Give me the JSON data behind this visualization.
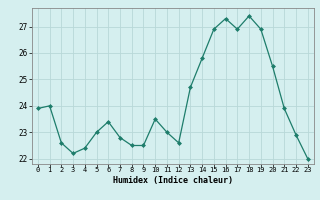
{
  "x": [
    0,
    1,
    2,
    3,
    4,
    5,
    6,
    7,
    8,
    9,
    10,
    11,
    12,
    13,
    14,
    15,
    16,
    17,
    18,
    19,
    20,
    21,
    22,
    23
  ],
  "y": [
    23.9,
    24.0,
    22.6,
    22.2,
    22.4,
    23.0,
    23.4,
    22.8,
    22.5,
    22.5,
    23.5,
    23.0,
    22.6,
    24.7,
    25.8,
    26.9,
    27.3,
    26.9,
    27.4,
    26.9,
    25.5,
    23.9,
    22.9,
    22.0
  ],
  "xlabel": "Humidex (Indice chaleur)",
  "xlim": [
    -0.5,
    23.5
  ],
  "ylim": [
    21.8,
    27.7
  ],
  "yticks": [
    22,
    23,
    24,
    25,
    26,
    27
  ],
  "line_color": "#1e7d6b",
  "marker_color": "#1e7d6b",
  "bg_color": "#d5efef",
  "grid_color": "#b8d8d8",
  "spine_color": "#888888"
}
